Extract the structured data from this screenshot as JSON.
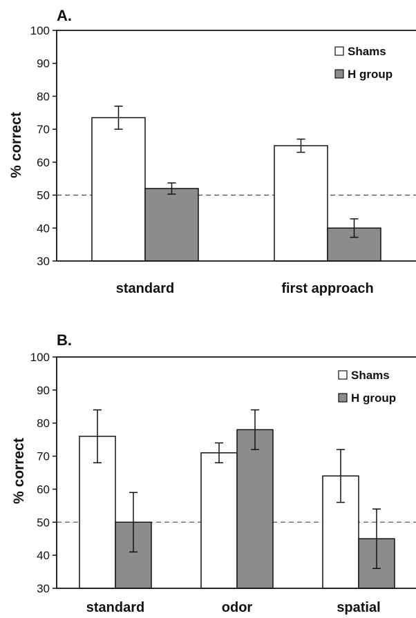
{
  "colors": {
    "shams": "#ffffff",
    "h_group": "#8c8c8c",
    "axis": "#111111"
  },
  "chart_data": [
    {
      "type": "bar",
      "panel_label": "A.",
      "ylabel": "% correct",
      "ylim": [
        30,
        100
      ],
      "yticks": [
        30,
        40,
        50,
        60,
        70,
        80,
        90,
        100
      ],
      "reference_line": 50,
      "grid": false,
      "legend_position": "top-right",
      "categories": [
        "standard",
        "first approach"
      ],
      "series": [
        {
          "name": "Shams",
          "values": [
            73.5,
            65
          ],
          "errors": [
            3.5,
            2
          ]
        },
        {
          "name": "H group",
          "values": [
            52,
            40
          ],
          "errors": [
            1.7,
            2.8
          ]
        }
      ]
    },
    {
      "type": "bar",
      "panel_label": "B.",
      "ylabel": "% correct",
      "ylim": [
        30,
        100
      ],
      "yticks": [
        30,
        40,
        50,
        60,
        70,
        80,
        90,
        100
      ],
      "reference_line": 50,
      "grid": false,
      "legend_position": "top-right",
      "categories": [
        "standard",
        "odor",
        "spatial"
      ],
      "series": [
        {
          "name": "Shams",
          "values": [
            76,
            71,
            64
          ],
          "errors": [
            8,
            3,
            8
          ]
        },
        {
          "name": "H group",
          "values": [
            50,
            78,
            45
          ],
          "errors": [
            9,
            6,
            9
          ]
        }
      ]
    }
  ]
}
